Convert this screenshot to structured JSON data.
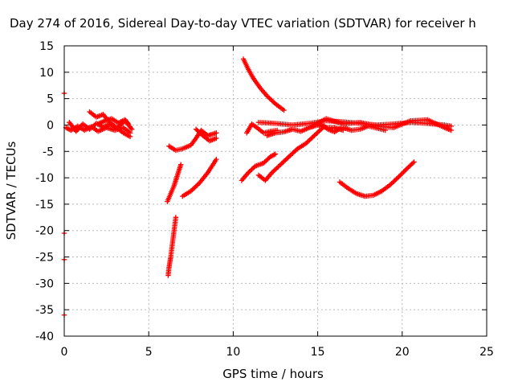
{
  "chart_data": {
    "type": "scatter",
    "title": "Day 274 of 2016, Sidereal Day-to-day VTEC variation (SDTVAR) for receiver h",
    "xlabel": "GPS time / hours",
    "ylabel": "SDTVAR / TECUs",
    "xlim": [
      0,
      25
    ],
    "ylim": [
      -40,
      15
    ],
    "xticks": [
      "0",
      "5",
      "10",
      "15",
      "20",
      "25"
    ],
    "yticks": [
      "15",
      "10",
      "5",
      "0",
      "-5",
      "-10",
      "-15",
      "-20",
      "-25",
      "-30",
      "-35",
      "-40"
    ],
    "grid": true,
    "marker": "plus",
    "color": "#ff0000",
    "tracks": [
      [
        [
          0.1,
          -0.5
        ],
        [
          0.4,
          -1
        ],
        [
          0.8,
          -0.2
        ],
        [
          1.2,
          -1
        ],
        [
          1.6,
          -0.3
        ],
        [
          2.0,
          -1.2
        ],
        [
          2.5,
          -0.5
        ],
        [
          3.0,
          -1.0
        ],
        [
          3.5,
          -0.5
        ],
        [
          3.9,
          -1.5
        ]
      ],
      [
        [
          0.3,
          0.5
        ],
        [
          0.7,
          -1.2
        ],
        [
          1.1,
          0.2
        ],
        [
          1.5,
          -0.8
        ],
        [
          1.9,
          0.3
        ],
        [
          2.3,
          -0.4
        ],
        [
          2.7,
          0.2
        ],
        [
          3.1,
          -0.6
        ],
        [
          3.6,
          0.8
        ],
        [
          4.0,
          -0.8
        ]
      ],
      [
        [
          1.5,
          2.5
        ],
        [
          1.9,
          1.5
        ],
        [
          2.3,
          2.0
        ],
        [
          2.7,
          0.5
        ],
        [
          3.1,
          -0.5
        ],
        [
          3.5,
          -1.5
        ],
        [
          3.9,
          -2.2
        ]
      ],
      [
        [
          2.0,
          0.2
        ],
        [
          2.4,
          0.8
        ],
        [
          2.8,
          1.2
        ],
        [
          3.2,
          0.4
        ],
        [
          3.6,
          1.0
        ],
        [
          3.8,
          0.2
        ]
      ],
      [
        [
          6.6,
          -17.5
        ],
        [
          6.5,
          -20
        ],
        [
          6.4,
          -22.5
        ],
        [
          6.3,
          -25
        ],
        [
          6.2,
          -27
        ],
        [
          6.15,
          -28.5
        ]
      ],
      [
        [
          6.1,
          -14.5
        ],
        [
          6.3,
          -13
        ],
        [
          6.5,
          -11.5
        ],
        [
          6.7,
          -9.5
        ],
        [
          6.9,
          -7.5
        ]
      ],
      [
        [
          7.0,
          -13.5
        ],
        [
          7.5,
          -12.5
        ],
        [
          8.0,
          -11.0
        ],
        [
          8.5,
          -9.0
        ],
        [
          9.0,
          -6.5
        ]
      ],
      [
        [
          6.2,
          -4.0
        ],
        [
          6.6,
          -4.8
        ],
        [
          7.0,
          -4.5
        ],
        [
          7.5,
          -3.8
        ],
        [
          7.8,
          -2.5
        ],
        [
          8.1,
          -1.0
        ],
        [
          8.5,
          -2.0
        ],
        [
          9.0,
          -1.5
        ]
      ],
      [
        [
          7.8,
          -0.8
        ],
        [
          8.2,
          -2.0
        ],
        [
          8.6,
          -3.0
        ],
        [
          9.0,
          -2.5
        ]
      ],
      [
        [
          10.6,
          12.5
        ],
        [
          10.9,
          10.5
        ],
        [
          11.2,
          8.8
        ],
        [
          11.6,
          7.0
        ],
        [
          12.0,
          5.5
        ],
        [
          12.5,
          4.0
        ],
        [
          13.0,
          2.8
        ]
      ],
      [
        [
          10.5,
          -10.5
        ],
        [
          10.9,
          -9.0
        ],
        [
          11.3,
          -7.8
        ],
        [
          11.8,
          -7.2
        ],
        [
          12.2,
          -6.0
        ],
        [
          12.5,
          -5.5
        ]
      ],
      [
        [
          11.5,
          -9.5
        ],
        [
          11.9,
          -10.5
        ],
        [
          12.3,
          -9.0
        ],
        [
          12.8,
          -7.5
        ],
        [
          13.3,
          -6.0
        ],
        [
          13.8,
          -4.5
        ],
        [
          14.3,
          -3.5
        ],
        [
          14.8,
          -2.0
        ],
        [
          15.3,
          -0.5
        ]
      ],
      [
        [
          10.8,
          -1.5
        ],
        [
          11.1,
          0.2
        ],
        [
          11.4,
          -0.5
        ],
        [
          11.8,
          -1.5
        ],
        [
          12.2,
          -1.2
        ],
        [
          12.6,
          -1.0
        ]
      ],
      [
        [
          12.0,
          -2.0
        ],
        [
          12.5,
          -1.5
        ],
        [
          13.0,
          -1.3
        ],
        [
          13.5,
          -0.8
        ],
        [
          14.0,
          -1.2
        ],
        [
          14.5,
          -0.5
        ],
        [
          15.0,
          0.0
        ],
        [
          15.5,
          -0.5
        ],
        [
          16.0,
          -0.5
        ],
        [
          16.5,
          -1.0
        ]
      ],
      [
        [
          11.5,
          0.5
        ],
        [
          12.5,
          0.3
        ],
        [
          13.5,
          0.0
        ],
        [
          14.5,
          0.3
        ],
        [
          15.5,
          0.8
        ],
        [
          16.5,
          0.6
        ],
        [
          17.5,
          0.3
        ],
        [
          18.5,
          0.0
        ],
        [
          19.5,
          0.2
        ],
        [
          20.5,
          0.5
        ],
        [
          21.5,
          0.3
        ],
        [
          22.5,
          0.0
        ],
        [
          22.9,
          -0.2
        ]
      ],
      [
        [
          14.5,
          -0.5
        ],
        [
          15.5,
          1.2
        ],
        [
          16.5,
          0.2
        ],
        [
          17.5,
          0.5
        ],
        [
          18.5,
          -0.2
        ],
        [
          19.5,
          -0.5
        ],
        [
          20.5,
          0.8
        ],
        [
          21.5,
          1.0
        ],
        [
          22.5,
          -0.5
        ],
        [
          22.9,
          -1.0
        ]
      ],
      [
        [
          16.5,
          -0.5
        ],
        [
          17.0,
          -1.0
        ],
        [
          17.5,
          -0.8
        ],
        [
          18.0,
          -0.2
        ],
        [
          18.5,
          -0.6
        ],
        [
          19.0,
          -1.0
        ]
      ],
      [
        [
          15.3,
          0.0
        ],
        [
          15.6,
          -0.8
        ],
        [
          16.0,
          -1.3
        ],
        [
          16.4,
          -0.5
        ]
      ],
      [
        [
          16.3,
          -10.8
        ],
        [
          16.8,
          -12.0
        ],
        [
          17.3,
          -13.0
        ],
        [
          17.8,
          -13.5
        ],
        [
          18.3,
          -13.3
        ],
        [
          18.8,
          -12.5
        ],
        [
          19.3,
          -11.3
        ],
        [
          19.8,
          -9.8
        ],
        [
          20.3,
          -8.2
        ],
        [
          20.7,
          -7.0
        ]
      ]
    ],
    "stray_points": [
      [
        0.0,
        6.0
      ],
      [
        0.0,
        -20.5
      ],
      [
        0.0,
        -25.5
      ],
      [
        0.0,
        -36.0
      ]
    ]
  }
}
